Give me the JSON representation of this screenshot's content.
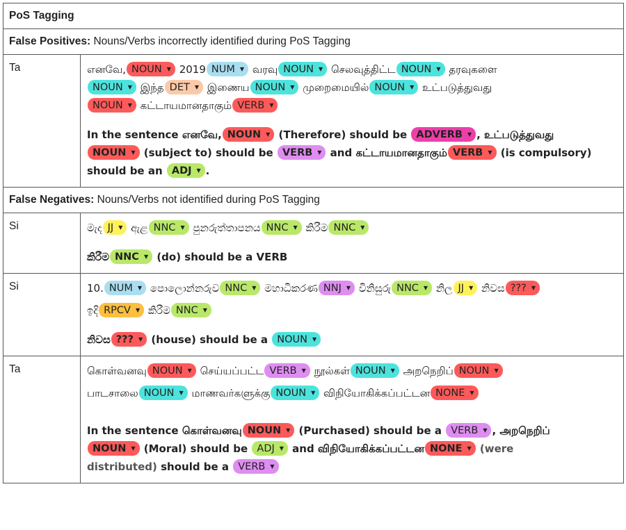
{
  "header": {
    "title": "PoS Tagging"
  },
  "false_positives": {
    "label": "False Positives:",
    "desc": " Nouns/Verbs incorrectly identified during PoS Tagging",
    "row1": {
      "lang": "Ta",
      "w1": "எனவே,",
      "t1": "NOUN",
      "w2": "2019",
      "t2": "NUM",
      "w3": "வரவு",
      "t3": "NOUN",
      "w4": "செலவுத்திட்ட",
      "t4": "NOUN",
      "w5": "தரவுகளை",
      "t5": "NOUN",
      "w6": "இந்த",
      "t6": "DET",
      "w7": "இணைய",
      "t7": "NOUN",
      "w8": "முறைமையில்",
      "t8": "NOUN",
      "w9": "உட்படுத்துவது",
      "t9": "NOUN",
      "w10": "கட்டாயமானதாகும்",
      "t10": "VERB",
      "n1": "In the sentence ",
      "n2": "எனவே,",
      "nt1": "NOUN",
      "n3": " (Therefore) should be ",
      "nt2": "ADVERB",
      "n4": ", ",
      "n5": "உட்படுத்துவது",
      "nt3": "NOUN",
      "n6": " (subject to) should be ",
      "nt4": "VERB",
      "n7": " and ",
      "n8": "கட்டாயமானதாகும்",
      "nt5": "VERB",
      "n9": " (is compulsory)",
      "n10": "should be an ",
      "nt6": "ADJ",
      "n11": "."
    }
  },
  "false_negatives": {
    "label": "False Negatives:",
    "desc": " Nouns/Verbs not identified during PoS Tagging",
    "row1": {
      "lang": "Si",
      "w1": "මැද",
      "t1": "JJ",
      "w2": "ඇළ",
      "t2": "NNC",
      "w3": "පුනරුත්තාපනය",
      "t3": "NNC",
      "w4": "කිරීම",
      "t4": "NNC",
      "n1": "කිරීම",
      "nt1": "NNC",
      "n2": " (do)  should be a VERB"
    },
    "row2": {
      "lang": "Si",
      "w1": "10.",
      "t1": "NUM",
      "w2": "පොලොන්නරුව",
      "t2": "NNC",
      "w3": "මහාධිකරණ",
      "t3": "NNJ",
      "w4": "විනිසුරු",
      "t4": "NNC",
      "w5": "නිල",
      "t5": "JJ",
      "w6": "නිවස",
      "t6": "???",
      "w7": "ඉදි",
      "t7": "RPCV",
      "w8": "කිරීම",
      "t8": "NNC",
      "n1": "නිවස",
      "nt1": "???",
      "n2": " (house)  should be a ",
      "nt2": "NOUN"
    },
    "row3": {
      "lang": "Ta",
      "w1": "கொள்வனவு",
      "t1": "NOUN",
      "w2": "செய்யப்பட்ட",
      "t2": "VERB",
      "w3": "நூல்கள்",
      "t3": "NOUN",
      "w4": "அறநெறிப்",
      "t4": "NOUN",
      "w5": "பாடசாலை",
      "t5": "NOUN",
      "w6": "மாணவர்களுக்கு",
      "t6": "NOUN",
      "w7": "விநியோகிக்கப்பட்டன",
      "t7": "NONE",
      "n1": "In the sentence ",
      "n2": "கொள்வனவு",
      "nt1": "NOUN",
      "n3": " (Purchased) should be a ",
      "nt2": "VERB",
      "n4": ",  ",
      "n5": "அறநெறிப்",
      "nt3": "NOUN",
      "n6": " (Moral) should be ",
      "nt4": "ADJ",
      "n7": " and ",
      "n8": "விநியோகிக்கப்பட்டன",
      "nt5": "NONE",
      "n9": " (were",
      "n10": "distributed)",
      "n11": " should be a ",
      "nt6": "VERB"
    }
  },
  "colors": {
    "noun": "#fc5a5a",
    "cyan": "#4de3dd",
    "num": "#a9def0",
    "det": "#fcc9a8",
    "nnc": "#b9e869",
    "verb_purple": "#de8df0",
    "adverb": "#ed3fa9",
    "jj": "#fef25b",
    "rpcv": "#fdbf3f"
  },
  "icons": {
    "tag_dropdown": "caret-down-icon"
  }
}
